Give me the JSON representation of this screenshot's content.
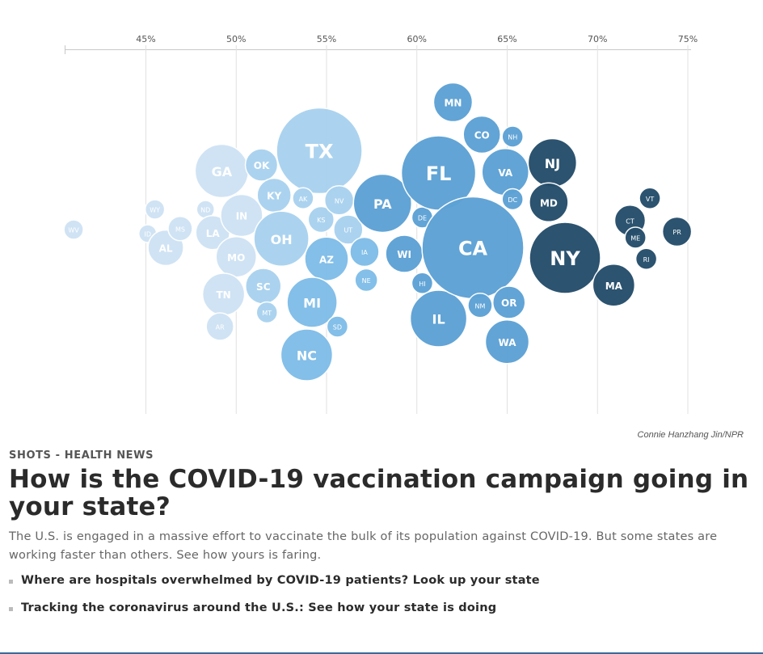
{
  "chart_data": {
    "type": "scatter",
    "title": "",
    "xlabel": "",
    "ylabel": "",
    "x_ticks": [
      "45%",
      "50%",
      "55%",
      "60%",
      "65%",
      "70%",
      "75%"
    ],
    "x_tick_values": [
      45,
      50,
      55,
      60,
      65,
      70,
      75
    ],
    "xlim": [
      40.4,
      75
    ],
    "grid": true,
    "colors": {
      "lightest": "#cfe3f4",
      "light": "#a9d2ef",
      "mid_light": "#7fbde8",
      "mid": "#5da2d5",
      "mid_dark": "#4a8ec4",
      "dark": "#264e6b",
      "gridline": "#e1e1e1",
      "axis": "#c8c8c8"
    },
    "points": [
      {
        "state": "WV",
        "x": 41.0,
        "row": 0.0,
        "size": 12,
        "color": "lightest"
      },
      {
        "state": "WY",
        "x": 45.5,
        "row": -1.0,
        "size": 12,
        "color": "lightest"
      },
      {
        "state": "ID",
        "x": 45.1,
        "row": 0.2,
        "size": 11,
        "color": "lightest"
      },
      {
        "state": "AL",
        "x": 46.1,
        "row": 0.9,
        "size": 22,
        "color": "lightest"
      },
      {
        "state": "MS",
        "x": 46.9,
        "row": -0.05,
        "size": 15,
        "color": "lightest"
      },
      {
        "state": "ND",
        "x": 48.3,
        "row": -1.0,
        "size": 11,
        "color": "lightest"
      },
      {
        "state": "GA",
        "x": 49.2,
        "row": -2.9,
        "size": 33,
        "color": "lightest"
      },
      {
        "state": "LA",
        "x": 48.7,
        "row": 0.15,
        "size": 21,
        "color": "lightest"
      },
      {
        "state": "IN",
        "x": 50.3,
        "row": -0.7,
        "size": 26,
        "color": "lightest"
      },
      {
        "state": "MO",
        "x": 50.0,
        "row": 1.35,
        "size": 25,
        "color": "lightest"
      },
      {
        "state": "TN",
        "x": 49.3,
        "row": 3.2,
        "size": 26,
        "color": "lightest"
      },
      {
        "state": "AR",
        "x": 49.1,
        "row": 4.8,
        "size": 17,
        "color": "lightest"
      },
      {
        "state": "OK",
        "x": 51.4,
        "row": -3.2,
        "size": 20,
        "color": "light"
      },
      {
        "state": "KY",
        "x": 52.1,
        "row": -1.7,
        "size": 21,
        "color": "light"
      },
      {
        "state": "OH",
        "x": 52.5,
        "row": 0.45,
        "size": 34,
        "color": "light"
      },
      {
        "state": "SC",
        "x": 51.5,
        "row": 2.8,
        "size": 22,
        "color": "light"
      },
      {
        "state": "MT",
        "x": 51.7,
        "row": 4.1,
        "size": 13,
        "color": "light"
      },
      {
        "state": "TX",
        "x": 54.6,
        "row": -3.9,
        "size": 53,
        "color": "light"
      },
      {
        "state": "AK",
        "x": 53.7,
        "row": -1.55,
        "size": 13,
        "color": "light"
      },
      {
        "state": "KS",
        "x": 54.7,
        "row": -0.5,
        "size": 16,
        "color": "light"
      },
      {
        "state": "NV",
        "x": 55.7,
        "row": -1.45,
        "size": 18,
        "color": "light"
      },
      {
        "state": "UT",
        "x": 56.2,
        "row": 0.0,
        "size": 18,
        "color": "light"
      },
      {
        "state": "AZ",
        "x": 55.0,
        "row": 1.45,
        "size": 27,
        "color": "mid_light"
      },
      {
        "state": "MI",
        "x": 54.2,
        "row": 3.6,
        "size": 31,
        "color": "mid_light"
      },
      {
        "state": "SD",
        "x": 55.6,
        "row": 4.8,
        "size": 13,
        "color": "mid_light"
      },
      {
        "state": "NC",
        "x": 53.9,
        "row": 6.2,
        "size": 32,
        "color": "mid_light"
      },
      {
        "state": "IA",
        "x": 57.1,
        "row": 1.1,
        "size": 18,
        "color": "mid_light"
      },
      {
        "state": "NE",
        "x": 57.2,
        "row": 2.5,
        "size": 14,
        "color": "mid_light"
      },
      {
        "state": "PA",
        "x": 58.1,
        "row": -1.3,
        "size": 36,
        "color": "mid"
      },
      {
        "state": "WI",
        "x": 59.3,
        "row": 1.2,
        "size": 23,
        "color": "mid"
      },
      {
        "state": "DE",
        "x": 60.3,
        "row": -0.6,
        "size": 13,
        "color": "mid"
      },
      {
        "state": "HI",
        "x": 60.3,
        "row": 2.65,
        "size": 13,
        "color": "mid"
      },
      {
        "state": "FL",
        "x": 61.2,
        "row": -2.8,
        "size": 46,
        "color": "mid"
      },
      {
        "state": "IL",
        "x": 61.2,
        "row": 4.4,
        "size": 35,
        "color": "mid"
      },
      {
        "state": "MN",
        "x": 62.0,
        "row": -6.3,
        "size": 24,
        "color": "mid"
      },
      {
        "state": "CO",
        "x": 63.6,
        "row": -4.7,
        "size": 23,
        "color": "mid"
      },
      {
        "state": "NH",
        "x": 65.3,
        "row": -4.6,
        "size": 13,
        "color": "mid"
      },
      {
        "state": "VA",
        "x": 64.9,
        "row": -2.85,
        "size": 29,
        "color": "mid"
      },
      {
        "state": "DC",
        "x": 65.3,
        "row": -1.5,
        "size": 13,
        "color": "mid"
      },
      {
        "state": "CA",
        "x": 63.1,
        "row": 0.9,
        "size": 63,
        "color": "mid"
      },
      {
        "state": "NM",
        "x": 63.5,
        "row": 3.75,
        "size": 15,
        "color": "mid"
      },
      {
        "state": "OR",
        "x": 65.1,
        "row": 3.6,
        "size": 20,
        "color": "mid"
      },
      {
        "state": "WA",
        "x": 65.0,
        "row": 5.55,
        "size": 27,
        "color": "mid"
      },
      {
        "state": "NJ",
        "x": 67.5,
        "row": -3.3,
        "size": 30,
        "color": "dark"
      },
      {
        "state": "MD",
        "x": 67.3,
        "row": -1.35,
        "size": 24,
        "color": "dark"
      },
      {
        "state": "NY",
        "x": 68.2,
        "row": 1.4,
        "size": 44,
        "color": "dark"
      },
      {
        "state": "MA",
        "x": 70.9,
        "row": 2.75,
        "size": 26,
        "color": "dark"
      },
      {
        "state": "CT",
        "x": 71.8,
        "row": -0.45,
        "size": 19,
        "color": "dark"
      },
      {
        "state": "VT",
        "x": 72.9,
        "row": -1.55,
        "size": 13,
        "color": "dark"
      },
      {
        "state": "ME",
        "x": 72.1,
        "row": 0.4,
        "size": 13,
        "color": "dark"
      },
      {
        "state": "RI",
        "x": 72.7,
        "row": 1.45,
        "size": 13,
        "color": "dark"
      },
      {
        "state": "PR",
        "x": 74.4,
        "row": 0.1,
        "size": 18,
        "color": "dark"
      }
    ]
  },
  "credit": "Connie Hanzhang Jin/NPR",
  "kicker": "SHOTS - HEALTH NEWS",
  "headline": "How is the COVID-19 vaccination campaign going in your state?",
  "teaser": "The U.S. is engaged in a massive effort to vaccinate the bulk of its population against COVID-19. But some states are working faster than others. See how yours is faring.",
  "related": [
    "Where are hospitals overwhelmed by COVID-19 patients? Look up your state",
    "Tracking the coronavirus around the U.S.: See how your state is doing"
  ]
}
